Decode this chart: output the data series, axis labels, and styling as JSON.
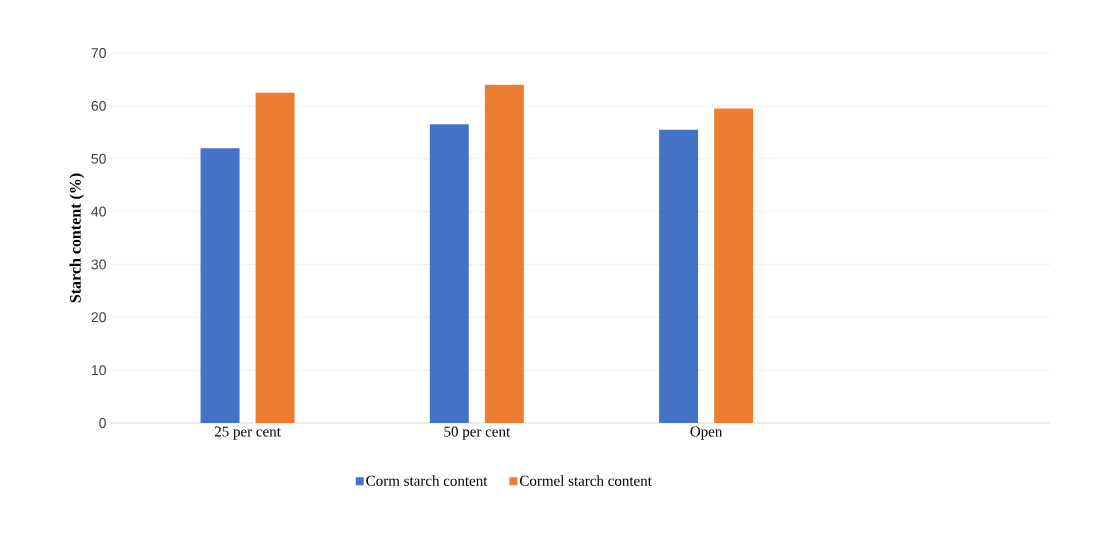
{
  "chart_data": {
    "type": "bar",
    "ylabel": "Starch content (%)",
    "categories": [
      "25 per cent",
      "50 per cent",
      "Open",
      null
    ],
    "series": [
      {
        "name": "Corm starch content",
        "color": "#4472c4",
        "values": [
          52,
          56.5,
          55.5,
          null
        ]
      },
      {
        "name": "Cormel starch content",
        "color": "#ed7d31",
        "values": [
          62.5,
          64,
          59.5,
          null
        ]
      }
    ],
    "ylim": [
      0,
      70
    ],
    "yticks": [
      0,
      10,
      20,
      30,
      40,
      50,
      60,
      70
    ],
    "grid": "y",
    "legend": "bottom"
  }
}
